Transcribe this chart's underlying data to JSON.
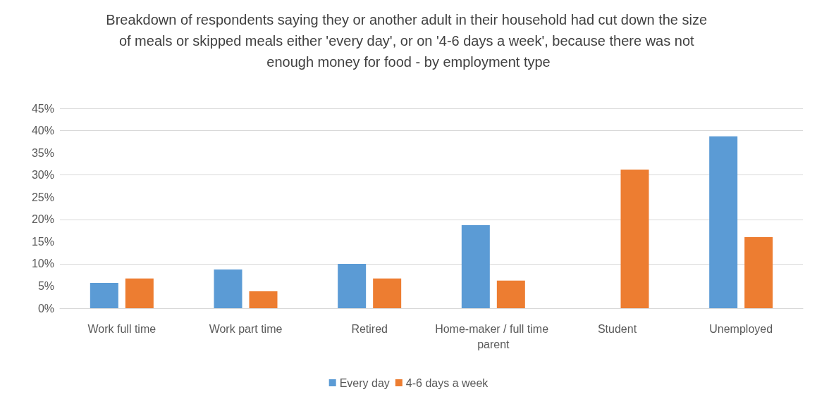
{
  "chart_data": {
    "type": "bar",
    "title": "Breakdown of respondents saying they or another adult in their household had cut down the size of meals or skipped meals either 'every day', or on '4-6 days a week', because there was not enough money for food - by employment type",
    "categories": [
      "Work full time",
      "Work part time",
      "Retired",
      "Home-maker / full time parent",
      "Student",
      "Unemployed"
    ],
    "series": [
      {
        "name": "Every day",
        "color": "#5b9bd5",
        "values": [
          5.7,
          8.7,
          10.0,
          18.7,
          0,
          38.7
        ]
      },
      {
        "name": "4-6 days a week",
        "color": "#ed7d31",
        "values": [
          6.7,
          3.8,
          6.7,
          6.2,
          31.2,
          16.0
        ]
      }
    ],
    "ylim": [
      0,
      45
    ],
    "yticks": [
      {
        "value": 0,
        "label": "0%"
      },
      {
        "value": 5,
        "label": "5%"
      },
      {
        "value": 10,
        "label": "10%"
      },
      {
        "value": 15,
        "label": "15%"
      },
      {
        "value": 20,
        "label": "20%"
      },
      {
        "value": 25,
        "label": "25%"
      },
      {
        "value": 30,
        "label": "30%"
      },
      {
        "value": 35,
        "label": "35%"
      },
      {
        "value": 40,
        "label": "40%"
      },
      {
        "value": 45,
        "label": "45%"
      }
    ],
    "grid": "y",
    "legend": "bottom"
  }
}
